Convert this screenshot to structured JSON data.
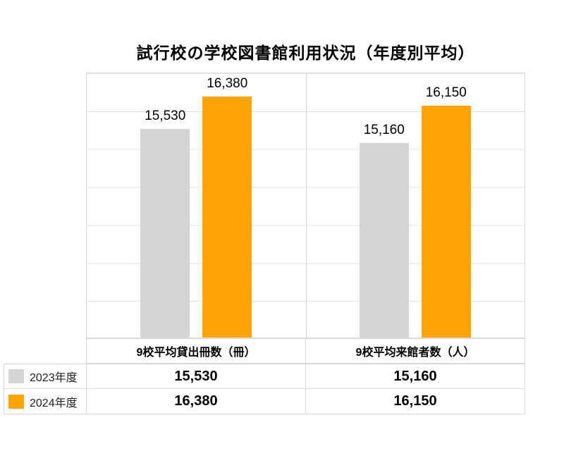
{
  "title": "試行校の学校図書館利用状況（年度別平均）",
  "chart_data": {
    "type": "bar",
    "title": "試行校の学校図書館利用状況（年度別平均）",
    "categories": [
      "9校平均貸出冊数（冊）",
      "9校平均来館者数（人）"
    ],
    "series": [
      {
        "name": "2023年度",
        "color": "#d6d4d4",
        "values": [
          15530,
          15160
        ],
        "labels": [
          "15,530",
          "15,160"
        ]
      },
      {
        "name": "2024年度",
        "color": "#ffa407",
        "values": [
          16380,
          16150
        ],
        "labels": [
          "16,380",
          "16,150"
        ]
      }
    ],
    "ylim": [
      10000,
      17000
    ],
    "grid": true,
    "legend_position": "table-left",
    "colors": {
      "grid": "#e3e3e3",
      "border": "#d9d9d9"
    }
  },
  "table": {
    "headers": [
      "9校平均貸出冊数（冊）",
      "9校平均来館者数（人）"
    ],
    "rows": [
      {
        "legend": "2023年度",
        "values": [
          "15,530",
          "15,160"
        ]
      },
      {
        "legend": "2024年度",
        "values": [
          "16,380",
          "16,150"
        ]
      }
    ]
  }
}
